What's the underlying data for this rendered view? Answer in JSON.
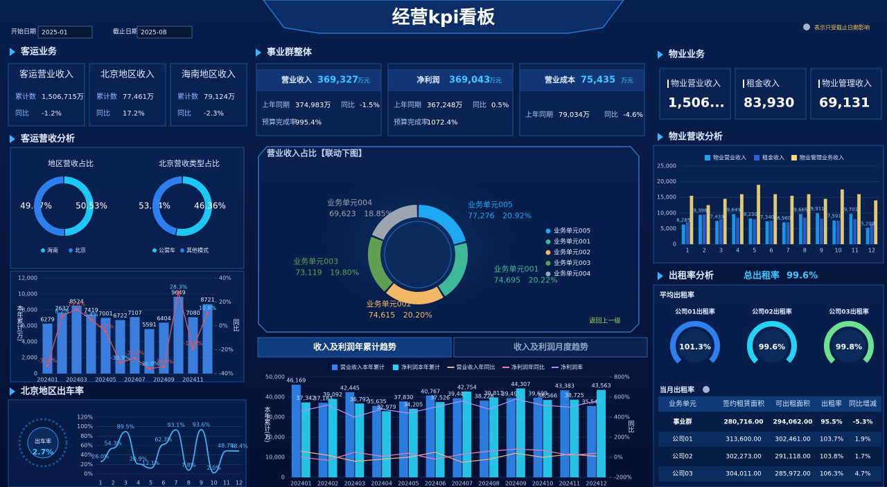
{
  "header": {
    "title": "经营kpi看板",
    "start_label": "开始日期",
    "start_value": "2025-01",
    "end_label": "截止日期",
    "end_value": "2025-08",
    "note": "表示只受截止日期影响"
  },
  "passenger": {
    "title": "客运业务",
    "analysis_title": "客运营收分析",
    "cards": [
      {
        "name": "客运营业收入",
        "total_label": "累计数",
        "total": "1,506,715万",
        "yoy_label": "同比",
        "yoy": "-1.2%"
      },
      {
        "name": "北京地区收入",
        "total_label": "累计数",
        "total": "77,461万",
        "yoy_label": "同比",
        "yoy": "17.2%"
      },
      {
        "name": "海南地区收入",
        "total_label": "累计数",
        "total": "79,124万",
        "yoy_label": "同比",
        "yoy": "-2.3%"
      }
    ]
  },
  "beijing": {
    "title": "北京地区出车率",
    "gauge_label": "出车率",
    "gauge_value": "2.7%"
  },
  "group": {
    "title": "事业群整体",
    "back_label": "返回上一级",
    "tabs": [
      "收入及利润年累计趋势",
      "收入及利润月度趋势"
    ],
    "cards": [
      {
        "name": "营业收入",
        "value": "369,327",
        "unit": "万元",
        "rows": [
          [
            "上年同期",
            "374,983万",
            "同比",
            "-1.5%"
          ],
          [
            "预算完成率",
            "995.4%"
          ]
        ]
      },
      {
        "name": "净利润",
        "value": "369,043",
        "unit": "万元",
        "rows": [
          [
            "上年同期",
            "367,248万",
            "同比",
            "0.5%"
          ],
          [
            "预算完成率",
            "1072.4%"
          ]
        ]
      },
      {
        "name": "营业成本",
        "value": "75,435",
        "unit": "万元",
        "rows": [
          [
            "上年同期",
            "79,034万",
            "同比",
            "-4.6%"
          ]
        ]
      }
    ]
  },
  "property": {
    "title": "物业业务",
    "analysis_title": "物业营收分析",
    "cards": [
      {
        "name": "物业营业收入",
        "value": "1,506..."
      },
      {
        "name": "租金收入",
        "value": "83,930"
      },
      {
        "name": "物业管理收入",
        "value": "69,131"
      }
    ]
  },
  "rent": {
    "title": "出租率分析",
    "total_label": "总出租率",
    "total_value": "99.6%",
    "avg_title": "平均出租率",
    "month_title": "当月出租率",
    "gauges": [
      {
        "label": "公司01出租率",
        "value": "101.3%"
      },
      {
        "label": "公司02出租率",
        "value": "99.6%"
      },
      {
        "label": "公司03出租率",
        "value": "99.8%"
      }
    ],
    "table": {
      "header": [
        "业务单元",
        "签约租赁面积",
        "可出租面积",
        "出租率",
        "同比增减"
      ],
      "rows": [
        [
          "事业群",
          "280,716.00",
          "294,062.00",
          "95.5%",
          "-5.3%"
        ],
        [
          "公司01",
          "313,600.00",
          "302,461.00",
          "103.7%",
          "1.9%"
        ],
        [
          "公司02",
          "302,273.00",
          "291,118.00",
          "103.8%",
          "1.7%"
        ],
        [
          "公司03",
          "304,011.00",
          "285,972.00",
          "106.3%",
          "4.7%"
        ]
      ]
    }
  },
  "chart_data": [
    {
      "type": "pie",
      "title": "地区营收占比",
      "categories": [
        "海南",
        "北京"
      ],
      "values": [
        49.47,
        50.53
      ],
      "value_labels": [
        "49.47%",
        "50.53%"
      ],
      "colors": [
        "#1ec8f5",
        "#2d7ff0"
      ]
    },
    {
      "type": "pie",
      "title": "北京营收类型占比",
      "categories": [
        "公营车",
        "其他模式"
      ],
      "values": [
        53.54,
        46.36
      ],
      "value_labels": [
        "53.54%",
        "46.36%"
      ],
      "colors": [
        "#1ec8f5",
        "#2d7ff0"
      ]
    },
    {
      "type": "combo",
      "y_label": "本年累计(万)",
      "y2_label": "同比",
      "categories": [
        "202401",
        null,
        "202403",
        null,
        "202405",
        null,
        "202407",
        null,
        "202409",
        null,
        "202411",
        null
      ],
      "series": [
        {
          "type": "bar",
          "color": "#3f86e8",
          "values": [
            6279,
            7632,
            8524,
            7419,
            7001,
            6722,
            7107,
            5591,
            6404,
            9649,
            7080,
            8721
          ]
        },
        {
          "type": "line",
          "axis": "y2",
          "color": "#e8555a",
          "values": [
            -33.3,
            8.2,
            13.8,
            5.4,
            -4.6,
            -30.9,
            -27.0,
            -36.0,
            -34.1,
            28.3,
            -18.9,
            10.8
          ],
          "value_labels": [
            "-33.3%",
            "8.2%",
            "13.8%",
            "5.4%",
            "-4.6%",
            "-30.9%",
            "-27.0%",
            "-36.0%",
            "-34.1%",
            "28.3%",
            "-18.9%",
            "10.8%"
          ]
        }
      ],
      "ylim": [
        0,
        12000
      ],
      "yticks": [
        0,
        {
          "value": 2000,
          "label": "2,000"
        },
        {
          "value": 4000,
          "label": "4,000"
        },
        {
          "value": 6000,
          "label": "6,000"
        },
        {
          "value": 8000,
          "label": "8,000"
        },
        {
          "value": 10000,
          "label": "10,000"
        },
        {
          "value": 12000,
          "label": "12,000"
        }
      ],
      "y2lim": [
        -40,
        40
      ],
      "y2ticks": [
        {
          "value": -40,
          "label": "-40%"
        },
        {
          "value": -20,
          "label": "-20%"
        },
        {
          "value": 0,
          "label": "0%"
        },
        {
          "value": 20,
          "label": "20%"
        },
        {
          "value": 40,
          "label": "40%"
        }
      ]
    },
    {
      "type": "line",
      "x": [
        1,
        2,
        3,
        4,
        5,
        6,
        7,
        8,
        9,
        10,
        11,
        12
      ],
      "xlim": [
        1,
        12
      ],
      "xticks": [
        1,
        2,
        3,
        4,
        5,
        6,
        7,
        8,
        9,
        10,
        11,
        12
      ],
      "ylim": [
        0,
        120
      ],
      "yticks": [
        {
          "value": 0,
          "label": "0%"
        },
        {
          "value": 20,
          "label": "20%"
        },
        {
          "value": 40,
          "label": "40%"
        },
        {
          "value": 60,
          "label": "60%"
        },
        {
          "value": 80,
          "label": "80%"
        },
        {
          "value": 100,
          "label": "100%"
        },
        {
          "value": 120,
          "label": "120%"
        }
      ],
      "series": [
        {
          "color": "#3bb4f5",
          "values": [
            26.0,
            54.3,
            89.5,
            20.9,
            12.1,
            62.3,
            93.1,
            7.8,
            93.6,
            2.0,
            48.7,
            48.4
          ],
          "value_labels": [
            "26.0%",
            "54.3%",
            "89.5%",
            "20.9%",
            "12.1%",
            "62.3%",
            "93.1%",
            "7.8%",
            "93.6%",
            "2.0%",
            "48.7%",
            "48.4%"
          ]
        }
      ]
    },
    {
      "type": "pie",
      "title": "营业收入占比【联动下图】",
      "legend": "right",
      "categories": [
        "业务单元005",
        "业务单元001",
        "业务单元002",
        "业务单元003",
        "业务单元004"
      ],
      "values": [
        77276,
        74695,
        74615,
        73119,
        69623
      ],
      "value_labels": [
        "77,276",
        "74,695",
        "74,615",
        "73,119",
        "69,623"
      ],
      "percent_labels": [
        "20.92%",
        "20.22%",
        "20.20%",
        "19.80%",
        "18.85%"
      ],
      "colors": [
        "#1fa8f2",
        "#3fb89a",
        "#f2b866",
        "#5fa053",
        "#9aa7b0"
      ]
    },
    {
      "type": "combo",
      "legend": "top",
      "y_label": "本年累计(万)",
      "y2_label": "同比",
      "categories": [
        "202401",
        "202402",
        "202403",
        "202404",
        "202405",
        "202406",
        "202407",
        "202408",
        "202409",
        "202410",
        "202411",
        "202412"
      ],
      "series": [
        {
          "name": "营业收入本年累计",
          "type": "bar",
          "color": "#2f86ee",
          "values": [
            46169,
            37183,
            42445,
            35635,
            37830,
            40767,
            39447,
            38228,
            39497,
            39699,
            43383,
            35543
          ],
          "value_labels": [
            "46,169",
            "37,183",
            "42,445",
            "35,635",
            "37,830",
            "40,767",
            "39,447",
            "38,228",
            "39,497",
            "39,699",
            "43,383",
            "35,543"
          ]
        },
        {
          "name": "净利润本年累计",
          "type": "bar",
          "color": "#27d3f5",
          "values": [
            37342,
            39092,
            36792,
            32979,
            34205,
            37526,
            42754,
            39811,
            44307,
            38566,
            38725,
            43563
          ],
          "value_labels": [
            "37,342",
            "39,092",
            "36,792",
            "32,979",
            "34,205",
            "37,526",
            "42,754",
            "39,811",
            "44,307",
            "38,566",
            "38,725",
            "43,563"
          ]
        },
        {
          "name": "营业收入年同比",
          "type": "line",
          "axis": "y2",
          "color": "#f0b08a",
          "values": [
            60,
            20,
            -40,
            -20,
            0,
            50,
            -50,
            -20,
            40,
            0,
            30,
            10
          ]
        },
        {
          "name": "净利润年同比",
          "type": "line",
          "axis": "y2",
          "color": "#e07fbf",
          "values": [
            0,
            -30,
            50,
            10,
            40,
            -20,
            30,
            60,
            80,
            70,
            20,
            40
          ]
        },
        {
          "name": "净利润率",
          "type": "line",
          "axis": "y2",
          "color": "#b08ff0",
          "values": [
            460,
            520,
            400,
            480,
            440,
            500,
            560,
            480,
            580,
            520,
            500,
            560
          ]
        }
      ],
      "ylim": [
        0,
        50000
      ],
      "yticks": [
        0,
        {
          "value": 10000,
          "label": "10,000"
        },
        {
          "value": 20000,
          "label": "20,000"
        },
        {
          "value": 30000,
          "label": "30,000"
        },
        {
          "value": 40000,
          "label": "40,000"
        },
        {
          "value": 50000,
          "label": "50,000"
        }
      ],
      "y2lim": [
        -200,
        800
      ],
      "y2ticks": [
        {
          "value": -200,
          "label": "-200%"
        },
        {
          "value": 0,
          "label": "0%"
        },
        {
          "value": 200,
          "label": "200%"
        },
        {
          "value": 400,
          "label": "400%"
        },
        {
          "value": 600,
          "label": "600%"
        },
        {
          "value": 800,
          "label": "800%"
        }
      ]
    },
    {
      "type": "bar",
      "legend": "top",
      "categories": [
        "1",
        "2",
        "3",
        "4",
        "5",
        "6",
        "7",
        "8",
        "9",
        "10",
        "11",
        "12"
      ],
      "series": [
        {
          "name": "物业营业收入",
          "color": "#1ea0f0",
          "values": [
            6285,
            9398,
            7433,
            9649,
            8230,
            7340,
            6980,
            9665,
            9911,
            7591,
            9701,
            5209
          ],
          "value_labels": [
            "6,285",
            "9,398",
            "7,433",
            "9,649",
            "8,230",
            "7,340",
            "6,980",
            "9,665",
            "9,911",
            "7,591",
            "9,701",
            "5,209"
          ]
        },
        {
          "name": "租金收入",
          "color": "#2a62d0",
          "values": [
            7000,
            9500,
            8000,
            8500,
            8000,
            7500,
            7000,
            8500,
            8200,
            7500,
            8000,
            6500
          ]
        },
        {
          "name": "物业管理业务收入",
          "color": "#f5d87a",
          "values": [
            15500,
            12500,
            14500,
            16000,
            19000,
            16000,
            15500,
            16000,
            14500,
            17500,
            16000,
            14000
          ]
        }
      ],
      "ylim": [
        0,
        25000
      ],
      "yticks": [
        0,
        {
          "value": 5000,
          "label": "5,000"
        },
        {
          "value": 10000,
          "label": "10,000"
        },
        {
          "value": 15000,
          "label": "15,000"
        },
        {
          "value": 20000,
          "label": "20,000"
        },
        {
          "value": 25000,
          "label": "25,000"
        }
      ]
    }
  ]
}
